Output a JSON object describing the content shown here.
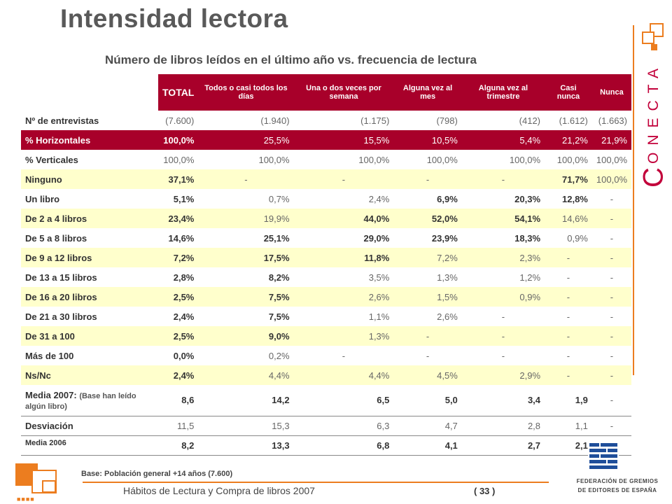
{
  "title": "Intensidad lectora",
  "subtitle": "Número de libros leídos en el último año vs. frecuencia de lectura",
  "brand": {
    "initial": "C",
    "rest": "ONECTA",
    "accent": "#ec7d1f",
    "color": "#c2003a"
  },
  "table": {
    "headers": [
      "TOTAL",
      "Todos o casi todos los días",
      "Una o dos veces por semana",
      "Alguna vez al mes",
      "Alguna vez al trimestre",
      "Casi nunca",
      "Nunca"
    ],
    "rows": [
      {
        "label": "Nº de entrevistas",
        "cells": [
          "(7.600)",
          "(1.940)",
          "(1.175)",
          "(798)",
          "(412)",
          "(1.612)",
          "(1.663)"
        ]
      },
      {
        "label": "% Horizontales",
        "cells": [
          "100,0%",
          "25,5%",
          "15,5%",
          "10,5%",
          "5,4%",
          "21,2%",
          "21,9%"
        ]
      },
      {
        "label": "% Verticales",
        "cells": [
          "100,0%",
          "100,0%",
          "100,0%",
          "100,0%",
          "100,0%",
          "100,0%",
          "100,0%"
        ]
      },
      {
        "label": "Ninguno",
        "cells": [
          "37,1%",
          "-",
          "-",
          "-",
          "-",
          "71,7%",
          "100,0%"
        ]
      },
      {
        "label": "Un libro",
        "cells": [
          "5,1%",
          "0,7%",
          "2,4%",
          "6,9%",
          "20,3%",
          "12,8%",
          "-"
        ]
      },
      {
        "label": "De 2 a 4 libros",
        "cells": [
          "23,4%",
          "19,9%",
          "44,0%",
          "52,0%",
          "54,1%",
          "14,6%",
          "-"
        ]
      },
      {
        "label": "De 5 a 8 libros",
        "cells": [
          "14,6%",
          "25,1%",
          "29,0%",
          "23,9%",
          "18,3%",
          "0,9%",
          "-"
        ]
      },
      {
        "label": "De 9 a 12 libros",
        "cells": [
          "7,2%",
          "17,5%",
          "11,8%",
          "7,2%",
          "2,3%",
          "-",
          "-"
        ]
      },
      {
        "label": "De 13 a 15 libros",
        "cells": [
          "2,8%",
          "8,2%",
          "3,5%",
          "1,3%",
          "1,2%",
          "-",
          "-"
        ]
      },
      {
        "label": "De 16 a 20 libros",
        "cells": [
          "2,5%",
          "7,5%",
          "2,6%",
          "1,5%",
          "0,9%",
          "-",
          "-"
        ]
      },
      {
        "label": "De 21 a 30 libros",
        "cells": [
          "2,4%",
          "7,5%",
          "1,1%",
          "2,6%",
          "-",
          "-",
          "-"
        ]
      },
      {
        "label": "De 31 a 100",
        "cells": [
          "2,5%",
          "9,0%",
          "1,3%",
          "-",
          "-",
          "-",
          "-"
        ]
      },
      {
        "label": "Más de 100",
        "cells": [
          "0,0%",
          "0,2%",
          "-",
          "-",
          "-",
          "-",
          "-"
        ]
      },
      {
        "label": "Ns/Nc",
        "cells": [
          "2,4%",
          "4,4%",
          "4,4%",
          "4,5%",
          "2,9%",
          "-",
          "-"
        ]
      },
      {
        "label": "Media 2007:",
        "label_note": "(Base han leído algún libro)",
        "cells": [
          "8,6",
          "14,2",
          "6,5",
          "5,0",
          "3,4",
          "1,9",
          "-"
        ]
      },
      {
        "label": "Desviación",
        "cells": [
          "11,5",
          "15,3",
          "6,3",
          "4,7",
          "2,8",
          "1,1",
          "-"
        ]
      },
      {
        "label": "Media 2006",
        "cells": [
          "8,2",
          "13,3",
          "6,8",
          "4,1",
          "2,7",
          "2,1",
          "-"
        ]
      }
    ]
  },
  "footer": {
    "base_note": "Base:  Población general +14 años (7.600)",
    "title": "Hábitos de Lectura y Compra de libros 2007",
    "page": "( 33 )",
    "publisher_line1": "FEDERACIÓN DE GREMIOS",
    "publisher_line2": "DE EDITORES DE ESPAÑA"
  }
}
